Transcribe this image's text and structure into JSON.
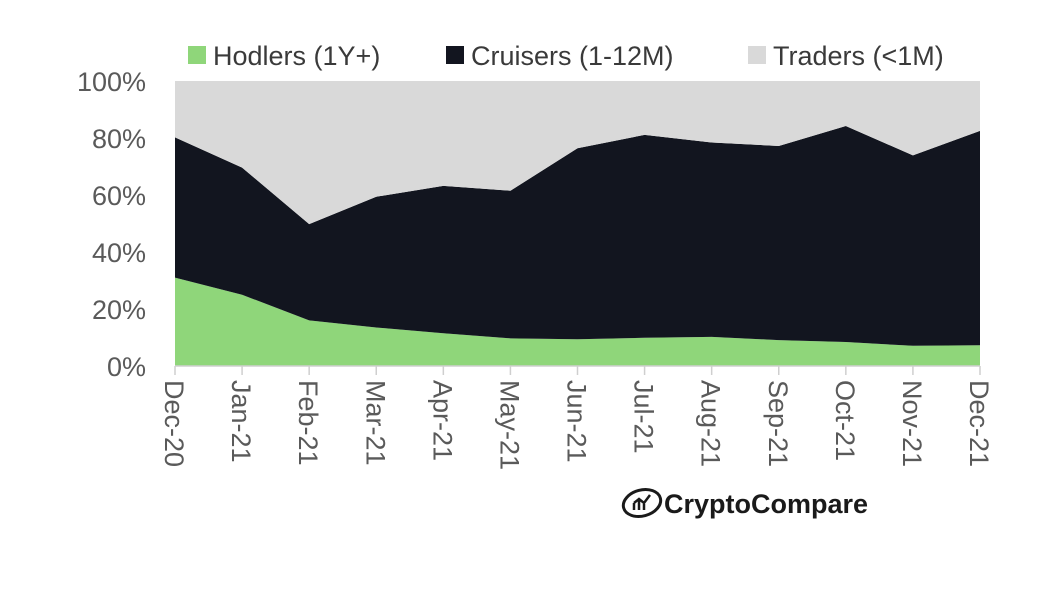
{
  "chart_data": {
    "type": "area",
    "stacked": true,
    "normalized": true,
    "title": "",
    "xlabel": "",
    "ylabel": "",
    "ylim": [
      0,
      100
    ],
    "y_ticks": [
      "0%",
      "20%",
      "40%",
      "60%",
      "80%",
      "100%"
    ],
    "categories": [
      "Dec-20",
      "Jan-21",
      "Feb-21",
      "Mar-21",
      "Apr-21",
      "May-21",
      "Jun-21",
      "Jul-21",
      "Aug-21",
      "Sep-21",
      "Oct-21",
      "Nov-21",
      "Dec-21"
    ],
    "legend_position": "top",
    "series": [
      {
        "name": "Hodlers (1Y+)",
        "color": "#8fd67a",
        "values": [
          31,
          25,
          16,
          13.5,
          11.5,
          9.7,
          9.4,
          9.9,
          10.2,
          9.1,
          8.4,
          7.1,
          7.3
        ]
      },
      {
        "name": "Cruisers (1-12M)",
        "color": "#12151f",
        "values": [
          49.2,
          44.6,
          33.8,
          45.9,
          51.7,
          51.8,
          67,
          71.2,
          68.2,
          68.1,
          75.8,
          66.8,
          75.2
        ]
      },
      {
        "name": "Traders (<1M)",
        "color": "#d9d9d9",
        "values": [
          19.8,
          30.4,
          50.2,
          40.6,
          36.8,
          38.5,
          23.6,
          18.9,
          21.6,
          22.8,
          15.8,
          26.1,
          17.5
        ]
      }
    ]
  },
  "branding": {
    "logo_text": "CryptoCompare"
  }
}
